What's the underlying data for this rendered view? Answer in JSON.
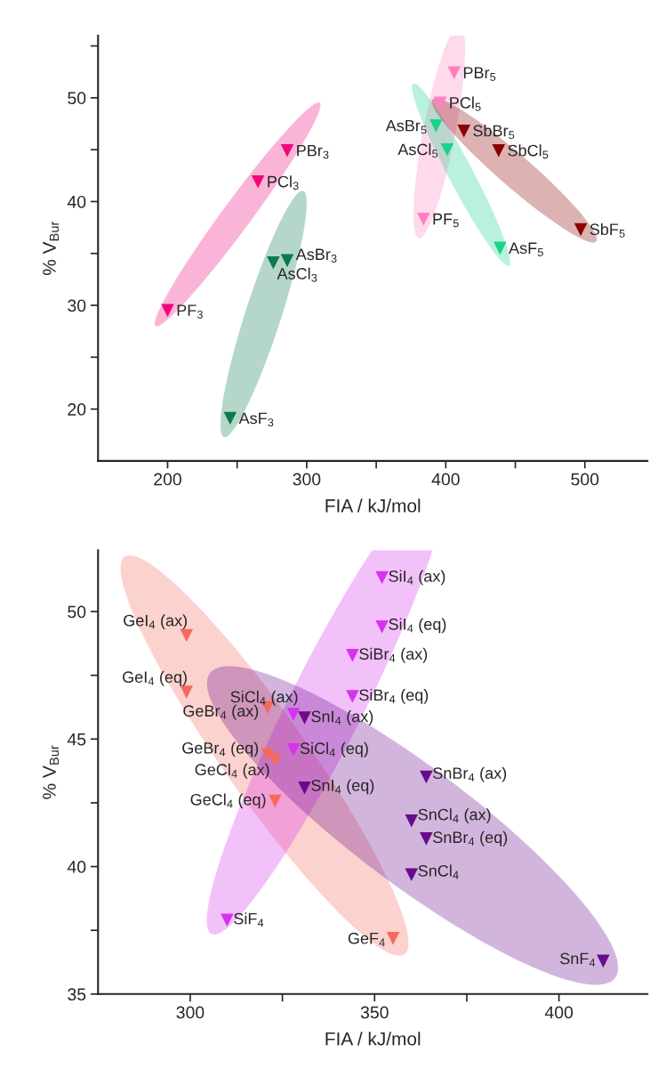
{
  "chart_data": [
    {
      "type": "scatter",
      "xlabel": "FIA / kJ/mol",
      "ylabel": "% V$_{Bur}$",
      "marker": "triangle",
      "grid": false,
      "xlim": [
        150,
        545
      ],
      "ylim": [
        15,
        56
      ],
      "xticks": [
        200,
        {
          "value": 250,
          "label": null
        },
        300,
        {
          "value": 350,
          "label": null
        },
        400,
        {
          "value": 450,
          "label": null
        },
        500
      ],
      "yticks": [
        20,
        {
          "value": 25,
          "label": null
        },
        30,
        {
          "value": 35,
          "label": null
        },
        40,
        {
          "value": 45,
          "label": null
        },
        50,
        {
          "value": 55,
          "label": null
        }
      ],
      "series": [
        {
          "color": "#f0087a",
          "x": [
            200,
            265,
            286
          ],
          "values": [
            29.5,
            41.9,
            44.9
          ]
        },
        {
          "color": "#0b7a4c",
          "x": [
            245,
            276,
            286
          ],
          "values": [
            19.1,
            34.1,
            34.3
          ]
        },
        {
          "color": "#ff80c0",
          "x": [
            384,
            396,
            406
          ],
          "values": [
            38.3,
            49.5,
            52.4
          ]
        },
        {
          "color": "#1ad28a",
          "x": [
            393,
            401,
            439
          ],
          "values": [
            47.3,
            45.0,
            35.5
          ]
        },
        {
          "color": "#8b0000",
          "x": [
            413,
            438,
            497
          ],
          "values": [
            46.8,
            44.9,
            37.3
          ]
        }
      ],
      "annotations": [
        {
          "text": "PF$_{3}$",
          "x": 200,
          "y": 29.5
        },
        {
          "text": "PCl$_{3}$",
          "x": 265,
          "y": 41.9
        },
        {
          "text": "PBr$_{3}$",
          "x": 286,
          "y": 44.9
        },
        {
          "text": "AsF$_{3}$",
          "x": 245,
          "y": 19.1
        },
        {
          "text": "AsCl$_{3}$",
          "x": 276,
          "y": 34.1
        },
        {
          "text": "AsBr$_{3}$",
          "x": 286,
          "y": 34.3
        },
        {
          "text": "PF$_{5}$",
          "x": 384,
          "y": 38.3
        },
        {
          "text": "PCl$_{5}$",
          "x": 396,
          "y": 49.5
        },
        {
          "text": "PBr$_{5}$",
          "x": 406,
          "y": 52.4
        },
        {
          "text": "AsBr$_{5}$",
          "x": 393,
          "y": 47.3
        },
        {
          "text": "AsCl$_{5}$",
          "x": 401,
          "y": 45.0
        },
        {
          "text": "AsF$_{5}$",
          "x": 439,
          "y": 35.5
        },
        {
          "text": "SbBr$_{5}$",
          "x": 413,
          "y": 46.8
        },
        {
          "text": "SbCl$_{5}$",
          "x": 438,
          "y": 44.9
        },
        {
          "text": "SbF$_{5}$",
          "x": 497,
          "y": 37.3
        }
      ]
    },
    {
      "type": "scatter",
      "xlabel": "FIA / kJ/mol",
      "ylabel": "% V$_{Bur}$",
      "marker": "triangle",
      "grid": false,
      "xlim": [
        275,
        424
      ],
      "ylim": [
        35,
        52.4
      ],
      "xticks": [
        300,
        {
          "value": 325,
          "label": null
        },
        350,
        {
          "value": 375,
          "label": null
        },
        400
      ],
      "yticks": [
        35,
        {
          "value": 37.5,
          "label": null
        },
        40,
        {
          "value": 42.5,
          "label": null
        },
        45,
        {
          "value": 47.5,
          "label": null
        },
        50
      ],
      "series": [
        {
          "color": "#f46a5e",
          "x": [
            299,
            299,
            321,
            321,
            323,
            323,
            355
          ],
          "values": [
            49.06,
            46.84,
            46.24,
            44.4,
            44.18,
            42.57,
            37.18
          ]
        },
        {
          "color": "#d633f0",
          "x": [
            352,
            352,
            344,
            344,
            328,
            328,
            310
          ],
          "values": [
            51.33,
            49.4,
            48.28,
            46.67,
            45.97,
            44.58,
            37.9
          ]
        },
        {
          "color": "#6a0b8a",
          "x": [
            331,
            331,
            364,
            360,
            364,
            360,
            412
          ],
          "values": [
            45.83,
            43.08,
            43.51,
            41.79,
            41.09,
            39.68,
            36.29
          ]
        }
      ],
      "annotations": [
        {
          "text": "GeI$_{4}$ (ax)",
          "x": 299,
          "y": 49.06
        },
        {
          "text": "GeI$_{4}$ (eq)",
          "x": 299,
          "y": 46.84
        },
        {
          "text": "GeBr$_{4}$ (ax)",
          "x": 321,
          "y": 46.24
        },
        {
          "text": "GeBr$_{4}$ (eq)",
          "x": 321,
          "y": 44.4
        },
        {
          "text": "GeCl$_{4}$ (ax)",
          "x": 323,
          "y": 44.18
        },
        {
          "text": "GeCl$_{4}$ (eq)",
          "x": 323,
          "y": 42.57
        },
        {
          "text": "GeF$_{4}$",
          "x": 355,
          "y": 37.18
        },
        {
          "text": "SiI$_{4}$ (ax)",
          "x": 352,
          "y": 51.33
        },
        {
          "text": "SiI$_{4}$ (eq)",
          "x": 352,
          "y": 49.4
        },
        {
          "text": "SiBr$_{4}$ (ax)",
          "x": 344,
          "y": 48.28
        },
        {
          "text": "SiBr$_{4}$ (eq)",
          "x": 344,
          "y": 46.67
        },
        {
          "text": "SiCl$_{4}$ (ax)",
          "x": 328,
          "y": 45.97
        },
        {
          "text": "SiCl$_{4}$ (eq)",
          "x": 328,
          "y": 44.58
        },
        {
          "text": "SiF$_{4}$",
          "x": 310,
          "y": 37.9
        },
        {
          "text": "SnI$_{4}$ (ax)",
          "x": 331,
          "y": 45.83
        },
        {
          "text": "SnI$_{4}$ (eq)",
          "x": 331,
          "y": 43.08
        },
        {
          "text": "SnBr$_{4}$ (ax)",
          "x": 364,
          "y": 43.51
        },
        {
          "text": "SnCl$_{4}$ (ax)",
          "x": 360,
          "y": 41.79
        },
        {
          "text": "SnBr$_{4}$ (eq)",
          "x": 364,
          "y": 41.09
        },
        {
          "text": "SnCl$_{4}$",
          "x": 360,
          "y": 39.68
        },
        {
          "text": "SnF$_{4}$",
          "x": 412,
          "y": 36.29
        }
      ]
    }
  ]
}
